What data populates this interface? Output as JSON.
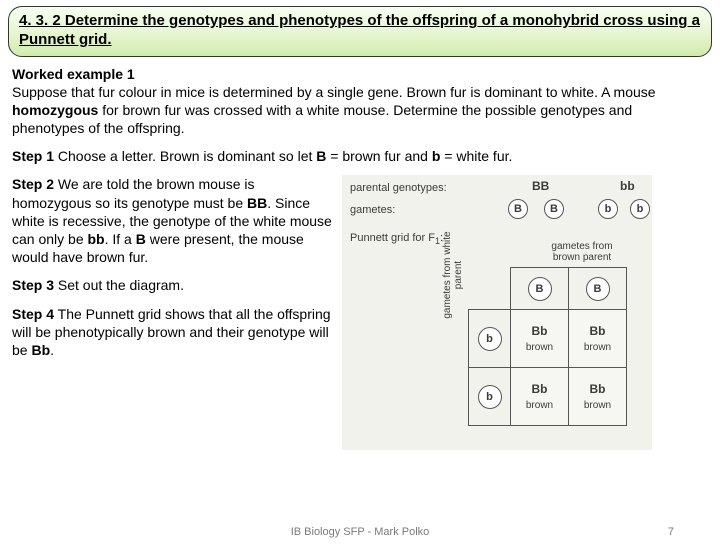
{
  "header": {
    "text": "4. 3. 2 Determine the genotypes and phenotypes of the offspring of a monohybrid cross using a Punnett grid."
  },
  "worked_title": "Worked example 1",
  "intro": "Suppose that fur colour in mice is determined by a single gene. Brown fur is dominant to white. A mouse ",
  "intro_bold": "homozygous",
  "intro2": " for brown fur was crossed with a white mouse. Determine the possible genotypes and phenotypes of the offspring.",
  "step1_label": "Step 1",
  "step1_a": " Choose a letter. Brown is dominant so let ",
  "step1_B": "B",
  "step1_b": " = brown fur and ",
  "step1_bb": "b",
  "step1_c": " = white fur.",
  "step2_label": "Step 2",
  "step2_a": " We are told the brown mouse is homozygous so its genotype must be ",
  "step2_BB": "BB",
  "step2_b": ". Since white is recessive, the genotype of the white mouse can only be ",
  "step2_bb": "bb",
  "step2_c": ". If a ",
  "step2_B": "B",
  "step2_d": " were present, the mouse would have brown fur.",
  "step3_label": "Step 3",
  "step3_text": " Set out the diagram.",
  "step4_label": "Step 4",
  "step4_a": " The Punnett grid shows that all the offspring will be phenotypically brown and their genotype will be ",
  "step4_Bb": "Bb",
  "step4_b": ".",
  "footer": {
    "center": "IB Biology SFP - Mark Polko",
    "page": "7"
  },
  "diagram": {
    "parental_label": "parental genotypes:",
    "parent1": "BB",
    "parent2": "bb",
    "gametes_label": "gametes:",
    "g": [
      "B",
      "B",
      "b",
      "b"
    ],
    "pgrid_label": "Punnett grid for F",
    "pgrid_sub": "1",
    "top_label": "gametes from brown parent",
    "side_label": "gametes from white parent",
    "col_headers": [
      "B",
      "B"
    ],
    "row_headers": [
      "b",
      "b"
    ],
    "cells": [
      [
        {
          "g": "Bb",
          "p": "brown"
        },
        {
          "g": "Bb",
          "p": "brown"
        }
      ],
      [
        {
          "g": "Bb",
          "p": "brown"
        },
        {
          "g": "Bb",
          "p": "brown"
        }
      ]
    ]
  }
}
